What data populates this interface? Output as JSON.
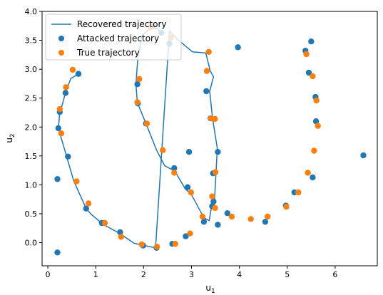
{
  "chart_data": {
    "type": "scatter",
    "xlabel": "u",
    "xlabel_sub": "1",
    "ylabel": "u",
    "ylabel_sub": "2",
    "xlim": [
      -0.12,
      6.88
    ],
    "ylim": [
      -0.4,
      4.0
    ],
    "xticks": [
      0,
      1,
      2,
      3,
      4,
      5,
      6
    ],
    "yticks": [
      0.0,
      0.5,
      1.0,
      1.5,
      2.0,
      2.5,
      3.0,
      3.5,
      4.0
    ],
    "legend_position": "top-left",
    "series": [
      {
        "name": "Recovered trajectory",
        "kind": "line",
        "color": "#1f77b4",
        "x": [
          2.36,
          2.2,
          1.97,
          1.88,
          1.84,
          1.87,
          2.05,
          2.27,
          2.44,
          2.65,
          2.87,
          3.0,
          3.26,
          3.37,
          3.42,
          3.48,
          3.53,
          3.54,
          3.44,
          3.38,
          3.46,
          3.39,
          3.3,
          3.02,
          2.72,
          2.54,
          2.25,
          2.02,
          1.8,
          1.5,
          1.15,
          0.92,
          0.8,
          0.54,
          0.4,
          0.22,
          0.25,
          0.28,
          0.37,
          0.48,
          0.64
        ],
        "y": [
          3.64,
          3.76,
          3.58,
          3.2,
          2.74,
          2.42,
          2.06,
          1.6,
          1.33,
          1.24,
          0.93,
          0.83,
          0.43,
          0.38,
          0.63,
          0.71,
          1.5,
          1.63,
          2.15,
          2.62,
          2.87,
          2.97,
          3.28,
          3.3,
          3.51,
          3.66,
          -0.09,
          -0.05,
          -0.01,
          0.16,
          0.32,
          0.48,
          0.59,
          1.07,
          1.47,
          1.98,
          2.25,
          2.32,
          2.6,
          2.84,
          2.92
        ]
      },
      {
        "name": "Attacked trajectory",
        "kind": "scatter",
        "color": "#1f77b4",
        "x": [
          0.2,
          0.2,
          0.22,
          0.25,
          0.37,
          0.42,
          0.64,
          0.8,
          1.13,
          1.51,
          1.99,
          2.27,
          2.6,
          2.88,
          2.64,
          2.92,
          2.95,
          2.54,
          2.37,
          2.2,
          1.87,
          1.88,
          2.05,
          3.26,
          3.31,
          3.4,
          3.46,
          3.45,
          3.55,
          3.55,
          3.75,
          3.97,
          4.54,
          4.97,
          5.15,
          5.38,
          5.45,
          5.53,
          5.59,
          5.6,
          5.5,
          6.59,
          3.43
        ],
        "y": [
          -0.17,
          1.1,
          1.98,
          2.26,
          2.59,
          1.49,
          2.92,
          0.59,
          0.34,
          0.18,
          -0.05,
          -0.09,
          -0.02,
          0.11,
          1.29,
          0.96,
          1.57,
          3.44,
          3.63,
          3.74,
          2.74,
          2.41,
          2.06,
          0.36,
          2.62,
          2.15,
          0.71,
          1.2,
          0.31,
          1.57,
          0.51,
          3.38,
          0.36,
          0.64,
          0.87,
          3.32,
          2.94,
          1.13,
          2.52,
          2.1,
          3.48,
          1.51,
          0.63
        ]
      },
      {
        "name": "True trajectory",
        "kind": "scatter",
        "color": "#ff7f0e",
        "x": [
          0.25,
          0.28,
          0.38,
          0.52,
          0.6,
          0.85,
          1.19,
          1.53,
          1.96,
          2.28,
          2.66,
          2.97,
          2.99,
          2.64,
          2.4,
          2.57,
          2.15,
          1.91,
          1.87,
          2.07,
          3.23,
          3.36,
          3.41,
          3.49,
          3.49,
          3.5,
          3.84,
          4.24,
          4.59,
          4.98,
          5.23,
          5.43,
          5.4,
          5.53,
          5.56,
          5.61,
          5.64,
          3.32,
          3.43
        ],
        "y": [
          2.31,
          1.89,
          2.69,
          2.99,
          1.06,
          0.68,
          0.34,
          0.1,
          -0.03,
          -0.07,
          -0.02,
          0.16,
          0.87,
          1.21,
          1.6,
          3.55,
          3.72,
          2.83,
          2.43,
          2.06,
          0.45,
          3.3,
          2.15,
          2.14,
          0.6,
          1.22,
          0.45,
          0.41,
          0.45,
          0.62,
          0.87,
          1.21,
          3.26,
          2.88,
          1.59,
          2.46,
          2.02,
          2.97,
          0.8
        ]
      }
    ]
  }
}
